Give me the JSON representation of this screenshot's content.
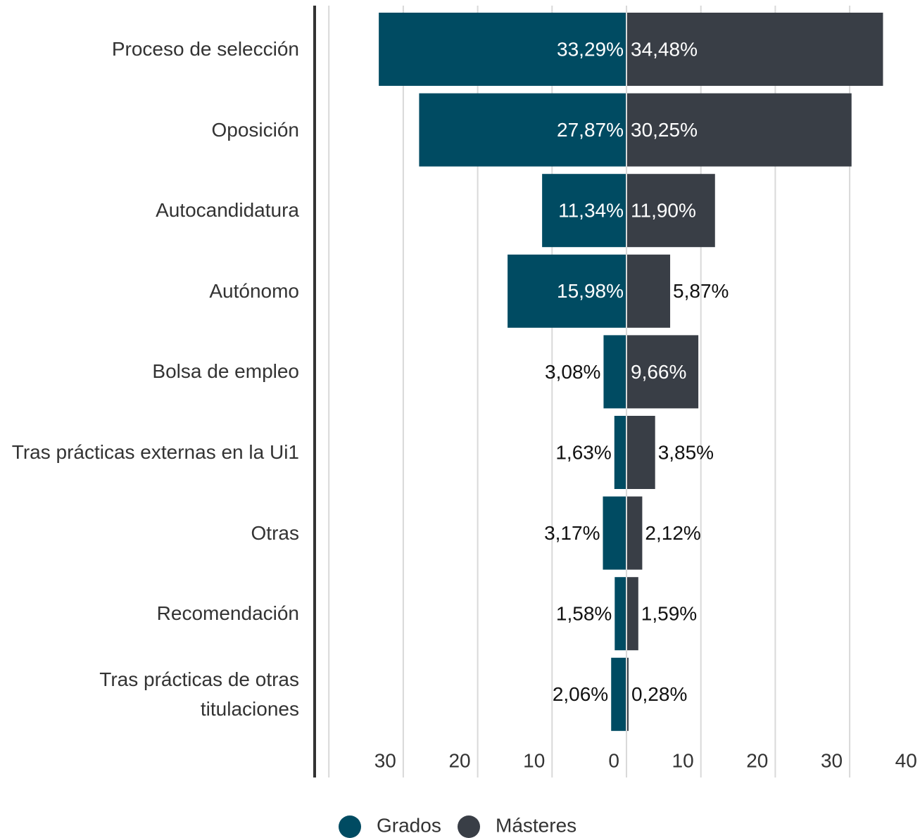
{
  "chart_data": {
    "type": "butterfly",
    "categories": [
      "Proceso de selección",
      "Oposición",
      "Autocandidatura",
      "Autónomo",
      "Bolsa de empleo",
      "Tras prácticas externas en la Ui1",
      "Otras",
      "Recomendación",
      "Tras prácticas de otras titulaciones"
    ],
    "series": [
      {
        "name": "Grados",
        "color": "#004b62",
        "side": "left",
        "values": [
          33.29,
          27.87,
          11.34,
          15.98,
          3.08,
          1.63,
          3.17,
          1.58,
          2.06
        ],
        "value_labels": [
          "33,29%",
          "27,87%",
          "11,34%",
          "15,98%",
          "3,08%",
          "1,63%",
          "3,17%",
          "1,58%",
          "2,06%"
        ]
      },
      {
        "name": "Másteres",
        "color": "#393e46",
        "side": "right",
        "values": [
          34.48,
          30.25,
          11.9,
          5.87,
          9.66,
          3.85,
          2.12,
          1.59,
          0.28
        ],
        "value_labels": [
          "34,48%",
          "30,25%",
          "11,90%",
          "5,87%",
          "9,66%",
          "3,85%",
          "2,12%",
          "1,59%",
          "0,28%"
        ]
      }
    ],
    "xlim": [
      -40,
      40
    ],
    "xticks": [
      {
        "value": -30,
        "label": "30"
      },
      {
        "value": -20,
        "label": "20"
      },
      {
        "value": -10,
        "label": "10"
      },
      0,
      10,
      20,
      30,
      40
    ],
    "grid": true,
    "legend": "bottom"
  }
}
